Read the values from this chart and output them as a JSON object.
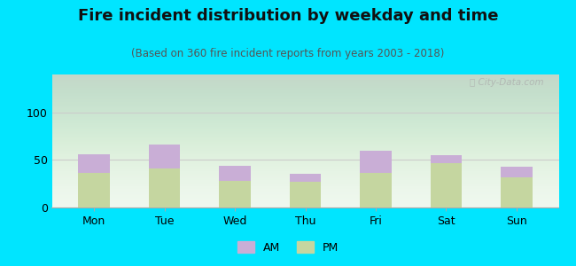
{
  "title": "Fire incident distribution by weekday and time",
  "subtitle": "(Based on 360 fire incident reports from years 2003 - 2018)",
  "days": [
    "Mon",
    "Tue",
    "Wed",
    "Thu",
    "Fri",
    "Sat",
    "Sun"
  ],
  "pm_values": [
    36,
    41,
    28,
    27,
    36,
    47,
    32
  ],
  "am_values": [
    20,
    25,
    16,
    8,
    24,
    8,
    11
  ],
  "am_color": "#c9aed6",
  "pm_color": "#c5d6a0",
  "background_color": "#00e5ff",
  "ylim": [
    0,
    140
  ],
  "yticks": [
    0,
    50,
    100
  ],
  "bar_width": 0.45,
  "title_fontsize": 13,
  "subtitle_fontsize": 8.5,
  "tick_fontsize": 9,
  "legend_fontsize": 9,
  "watermark": "Ⓢ City-Data.com"
}
